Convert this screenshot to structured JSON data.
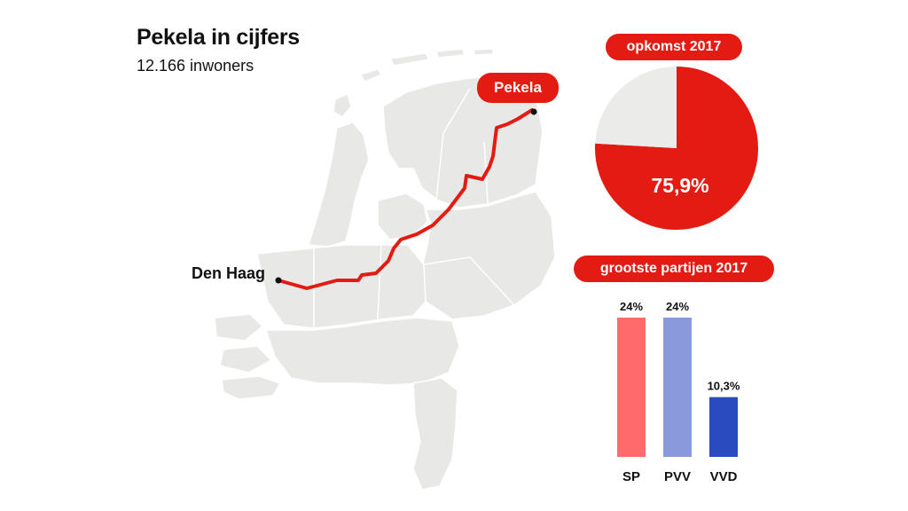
{
  "header": {
    "title": "Pekela in cijfers",
    "subtitle": "12.166 inwoners"
  },
  "map": {
    "route_from": "Den Haag",
    "route_to": "Pekela",
    "route_color": "#e31b12",
    "land_color": "#e8e8e6",
    "border_color": "#ffffff"
  },
  "chart_data": [
    {
      "type": "pie",
      "title": "opkomst 2017",
      "slices": [
        {
          "value": 75.9,
          "label": "75,9%",
          "color": "#e31b12"
        },
        {
          "value": 24.1,
          "label": "",
          "color": "#ebebea"
        }
      ]
    },
    {
      "type": "bar",
      "title": "grootste partijen 2017",
      "categories": [
        "SP",
        "PVV",
        "VVD"
      ],
      "values": [
        24,
        24,
        10.3
      ],
      "value_labels": [
        "24%",
        "24%",
        "10,3%"
      ],
      "colors": [
        "#ff6b6b",
        "#8a99dc",
        "#2a4bbf"
      ],
      "ylim": [
        0,
        24
      ]
    }
  ]
}
